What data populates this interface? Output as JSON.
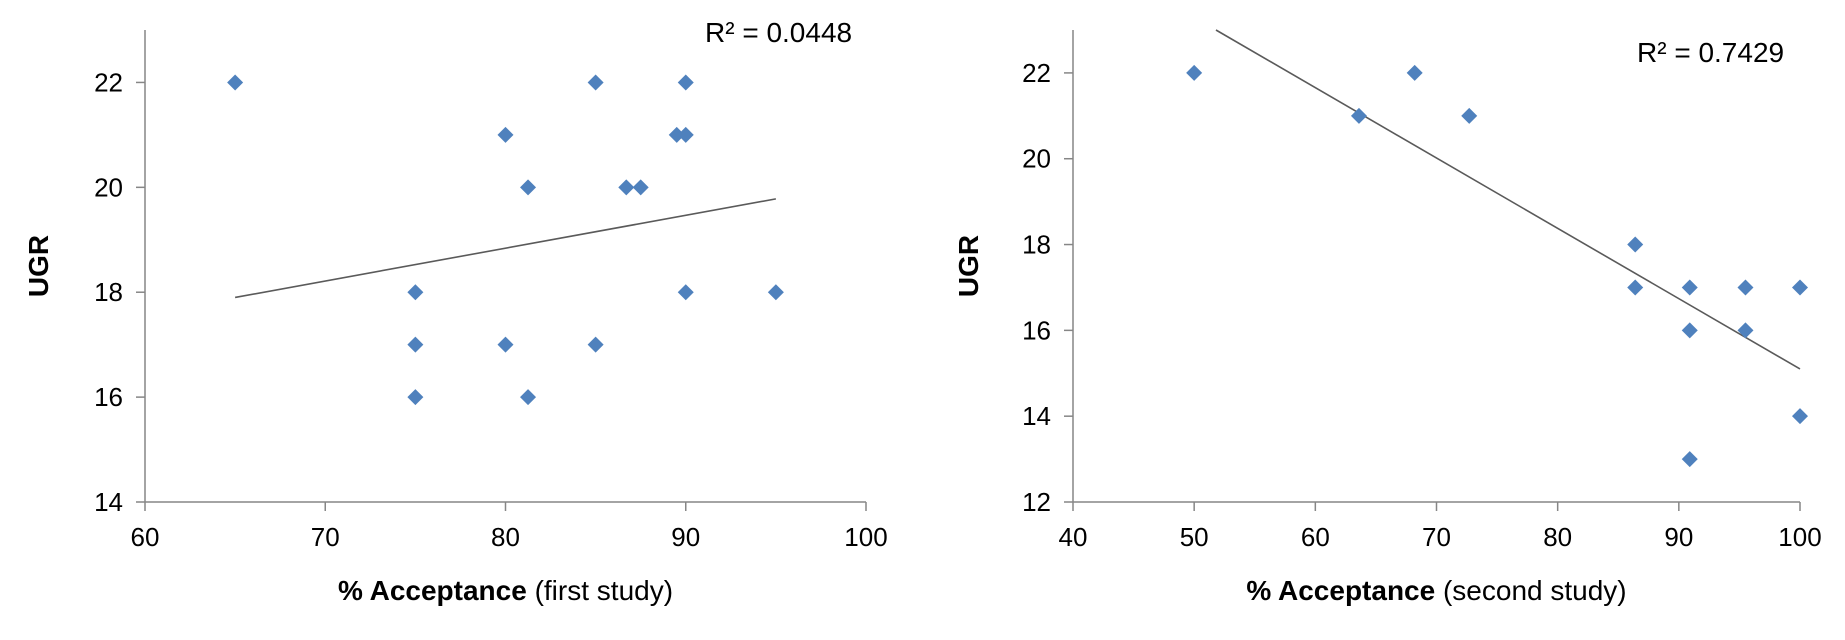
{
  "chart_data": [
    {
      "type": "scatter",
      "xlabel_bold": "% Acceptance",
      "xlabel_rest": "(first study)",
      "ylabel": "UGR",
      "xlim": [
        60,
        100
      ],
      "ylim": [
        14,
        23
      ],
      "xticks": [
        60,
        70,
        80,
        90,
        100
      ],
      "yticks": [
        14,
        16,
        18,
        20,
        22
      ],
      "annotation": "R² = 0.0448",
      "marker_color": "#4f81bd",
      "trendline": {
        "x": [
          65,
          95
        ],
        "y": [
          17.9,
          19.78
        ]
      },
      "points": [
        {
          "x": 65,
          "y": 22
        },
        {
          "x": 75,
          "y": 18
        },
        {
          "x": 75,
          "y": 17
        },
        {
          "x": 75,
          "y": 16
        },
        {
          "x": 80,
          "y": 21
        },
        {
          "x": 80,
          "y": 17
        },
        {
          "x": 81.25,
          "y": 20
        },
        {
          "x": 81.25,
          "y": 16
        },
        {
          "x": 85,
          "y": 22
        },
        {
          "x": 85,
          "y": 17
        },
        {
          "x": 86.7,
          "y": 20
        },
        {
          "x": 87.5,
          "y": 20
        },
        {
          "x": 89.5,
          "y": 21
        },
        {
          "x": 90,
          "y": 21
        },
        {
          "x": 90,
          "y": 22
        },
        {
          "x": 90,
          "y": 18
        },
        {
          "x": 95,
          "y": 18
        }
      ]
    },
    {
      "type": "scatter",
      "xlabel_bold": "% Acceptance",
      "xlabel_rest": "(second study)",
      "ylabel": "UGR",
      "xlim": [
        40,
        100
      ],
      "ylim": [
        12,
        23
      ],
      "xticks": [
        40,
        50,
        60,
        70,
        80,
        90,
        100
      ],
      "yticks": [
        12,
        14,
        16,
        18,
        20,
        22
      ],
      "annotation": "R² = 0.7429",
      "marker_color": "#4f81bd",
      "trendline": {
        "x": [
          51.8,
          100
        ],
        "y": [
          23,
          15.1
        ]
      },
      "points": [
        {
          "x": 50,
          "y": 22
        },
        {
          "x": 63.6,
          "y": 21
        },
        {
          "x": 68.2,
          "y": 22
        },
        {
          "x": 72.7,
          "y": 21
        },
        {
          "x": 86.4,
          "y": 18
        },
        {
          "x": 86.4,
          "y": 17
        },
        {
          "x": 90.9,
          "y": 17
        },
        {
          "x": 90.9,
          "y": 16
        },
        {
          "x": 90.9,
          "y": 13
        },
        {
          "x": 95.5,
          "y": 17
        },
        {
          "x": 95.5,
          "y": 16
        },
        {
          "x": 100,
          "y": 17
        },
        {
          "x": 100,
          "y": 14
        }
      ]
    }
  ]
}
